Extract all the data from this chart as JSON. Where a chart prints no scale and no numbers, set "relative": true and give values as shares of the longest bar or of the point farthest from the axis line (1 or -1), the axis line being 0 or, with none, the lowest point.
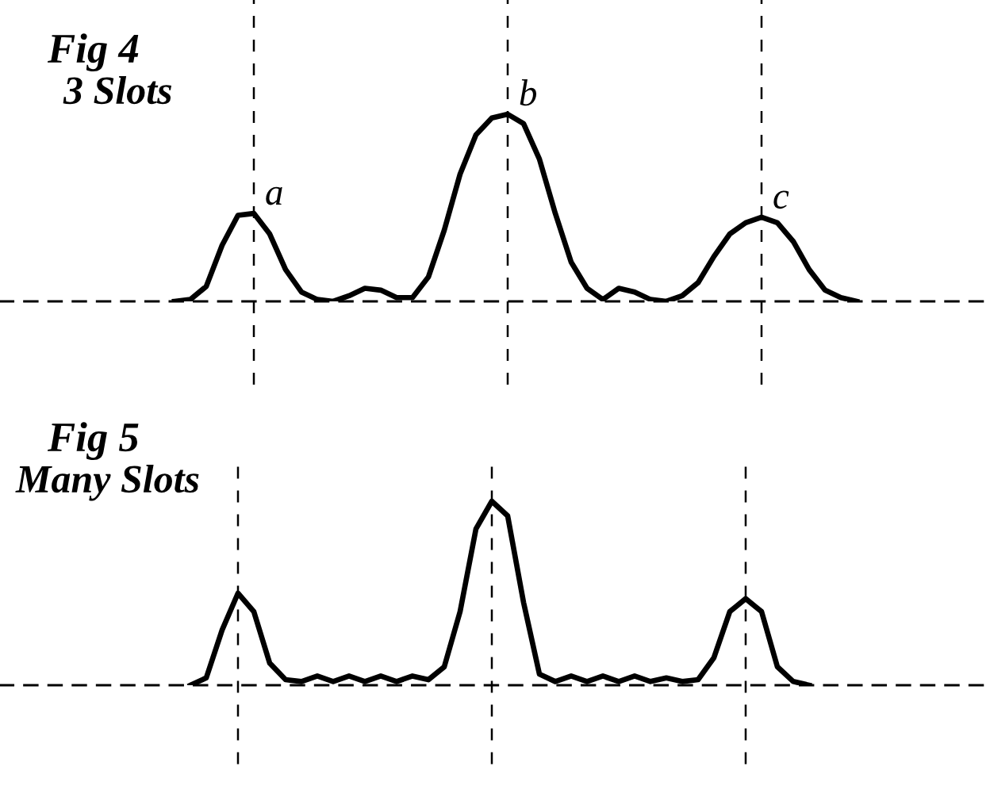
{
  "chart_data": [
    {
      "type": "line",
      "relative": true,
      "title": "Fig 4",
      "subtitle": "3 Slots",
      "categories": [
        null,
        null,
        null,
        null,
        null,
        null,
        null,
        null,
        null,
        null,
        null,
        null,
        null,
        null,
        null,
        null,
        null,
        null,
        null,
        null,
        null,
        null,
        null,
        null,
        null,
        null,
        null,
        null,
        null,
        null,
        null,
        null,
        null,
        null,
        null,
        null,
        null,
        null,
        null,
        null,
        null,
        null,
        null,
        null
      ],
      "series": [
        {
          "color": "#000000",
          "values": [
            0,
            0.01,
            0.08,
            0.3,
            0.46,
            0.47,
            0.36,
            0.17,
            0.05,
            0.01,
            0,
            0.03,
            0.07,
            0.06,
            0.02,
            0.02,
            0.13,
            0.38,
            0.68,
            0.89,
            0.98,
            1,
            0.95,
            0.76,
            0.47,
            0.21,
            0.07,
            0.01,
            0.07,
            0.05,
            0.01,
            0,
            0.03,
            0.1,
            0.24,
            0.36,
            0.42,
            0.45,
            0.42,
            0.32,
            0.17,
            0.06,
            0.02,
            0
          ]
        }
      ],
      "annotations": [
        "a",
        "b",
        "c"
      ],
      "marker": "none",
      "line_style": "solid",
      "grid": "x",
      "legend": false
    },
    {
      "type": "line",
      "relative": true,
      "title": "Fig 5",
      "subtitle": "Many Slots",
      "categories": [
        null,
        null,
        null,
        null,
        null,
        null,
        null,
        null,
        null,
        null,
        null,
        null,
        null,
        null,
        null,
        null,
        null,
        null,
        null,
        null,
        null,
        null,
        null,
        null,
        null,
        null,
        null,
        null,
        null,
        null,
        null,
        null,
        null,
        null,
        null,
        null,
        null,
        null,
        null,
        null
      ],
      "series": [
        {
          "color": "#000000",
          "values": [
            0,
            0.04,
            0.3,
            0.5,
            0.4,
            0.12,
            0.03,
            0.02,
            0.05,
            0.02,
            0.05,
            0.02,
            0.05,
            0.02,
            0.05,
            0.03,
            0.1,
            0.4,
            0.85,
            1,
            0.92,
            0.45,
            0.06,
            0.02,
            0.05,
            0.02,
            0.05,
            0.02,
            0.05,
            0.02,
            0.04,
            0.02,
            0.03,
            0.15,
            0.4,
            0.47,
            0.4,
            0.1,
            0.02,
            0
          ]
        }
      ],
      "marker": "none",
      "line_style": "solid",
      "grid": "x",
      "legend": false
    }
  ]
}
